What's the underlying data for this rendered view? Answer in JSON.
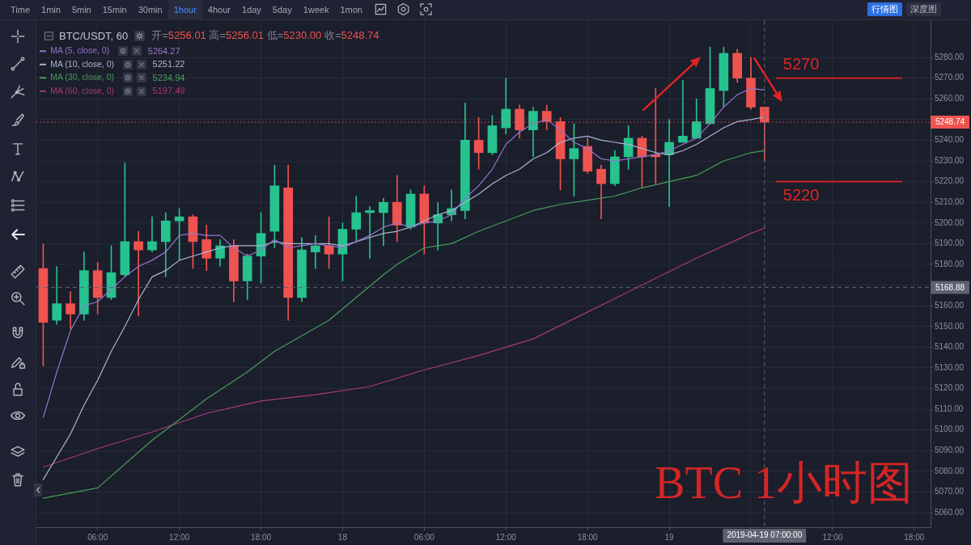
{
  "chart_data": {
    "type": "candlestick",
    "title": "BTC/USDT, 60",
    "subtitle": "开=5256.01 高=5256.01 低=5230.00 收=5248.74",
    "annotations": [
      "Time",
      "1min",
      "5min",
      "15min",
      "30min",
      "1hour",
      "4hour",
      "1day",
      "5day",
      "1week",
      "1mon",
      "行情图",
      "深度图",
      "5264.27",
      "5251.22",
      "5234.94",
      "5197.49",
      "BTC 1小时图"
    ],
    "x": [
      "2019-04-17T02:00",
      "2019-04-17T03:00",
      "2019-04-17T04:00",
      "2019-04-17T05:00",
      "2019-04-17T06:00",
      "2019-04-17T07:00",
      "2019-04-17T08:00",
      "2019-04-17T09:00",
      "2019-04-17T10:00",
      "2019-04-17T11:00",
      "2019-04-17T12:00",
      "2019-04-17T13:00",
      "2019-04-17T14:00",
      "2019-04-17T15:00",
      "2019-04-17T16:00",
      "2019-04-17T17:00",
      "2019-04-17T18:00",
      "2019-04-17T19:00",
      "2019-04-17T20:00",
      "2019-04-17T21:00",
      "2019-04-17T22:00",
      "2019-04-17T23:00",
      "2019-04-18T00:00",
      "2019-04-18T01:00",
      "2019-04-18T02:00",
      "2019-04-18T03:00",
      "2019-04-18T04:00",
      "2019-04-18T05:00",
      "2019-04-18T06:00",
      "2019-04-18T07:00",
      "2019-04-18T08:00",
      "2019-04-18T09:00",
      "2019-04-18T10:00",
      "2019-04-18T11:00",
      "2019-04-18T12:00",
      "2019-04-18T13:00",
      "2019-04-18T14:00",
      "2019-04-18T15:00",
      "2019-04-18T16:00",
      "2019-04-18T17:00",
      "2019-04-18T18:00",
      "2019-04-18T19:00",
      "2019-04-18T20:00",
      "2019-04-18T21:00",
      "2019-04-18T22:00",
      "2019-04-18T23:00",
      "2019-04-19T00:00",
      "2019-04-19T01:00",
      "2019-04-19T02:00",
      "2019-04-19T03:00",
      "2019-04-19T04:00",
      "2019-04-19T05:00",
      "2019-04-19T06:00",
      "2019-04-19T07:00"
    ],
    "ohlc": [
      [
        5178,
        5190,
        5131,
        5152
      ],
      [
        5153,
        5179,
        5151,
        5161
      ],
      [
        5161,
        5167,
        5149,
        5156
      ],
      [
        5156,
        5186,
        5153,
        5177
      ],
      [
        5177,
        5181,
        5156,
        5164
      ],
      [
        5164,
        5189,
        5163,
        5176
      ],
      [
        5175,
        5229,
        5174,
        5191
      ],
      [
        5191,
        5196,
        5155,
        5187
      ],
      [
        5187,
        5203,
        5186,
        5191
      ],
      [
        5191,
        5205,
        5174,
        5201
      ],
      [
        5201,
        5207,
        5182,
        5203
      ],
      [
        5203,
        5204,
        5178,
        5191
      ],
      [
        5192,
        5199,
        5177,
        5183
      ],
      [
        5183,
        5192,
        5179,
        5189
      ],
      [
        5189,
        5192,
        5162,
        5172
      ],
      [
        5172,
        5185,
        5163,
        5184
      ],
      [
        5184,
        5205,
        5171,
        5195
      ],
      [
        5196,
        5228,
        5188,
        5218
      ],
      [
        5217,
        5228,
        5153,
        5164
      ],
      [
        5164,
        5193,
        5162,
        5187
      ],
      [
        5186,
        5194,
        5178,
        5189
      ],
      [
        5189,
        5203,
        5178,
        5185
      ],
      [
        5185,
        5200,
        5172,
        5197
      ],
      [
        5197,
        5213,
        5191,
        5205
      ],
      [
        5205,
        5208,
        5183,
        5206
      ],
      [
        5205,
        5212,
        5189,
        5210
      ],
      [
        5210,
        5223,
        5191,
        5199
      ],
      [
        5198,
        5216,
        5197,
        5214
      ],
      [
        5214,
        5218,
        5185,
        5200
      ],
      [
        5200,
        5210,
        5187,
        5204
      ],
      [
        5204,
        5216,
        5201,
        5207
      ],
      [
        5206,
        5258,
        5202,
        5240
      ],
      [
        5240,
        5251,
        5226,
        5234
      ],
      [
        5234,
        5252,
        5233,
        5247
      ],
      [
        5246,
        5270,
        5243,
        5255
      ],
      [
        5255,
        5257,
        5241,
        5245
      ],
      [
        5245,
        5256,
        5232,
        5254
      ],
      [
        5254,
        5257,
        5245,
        5249
      ],
      [
        5249,
        5251,
        5216,
        5231
      ],
      [
        5231,
        5248,
        5213,
        5236
      ],
      [
        5237,
        5241,
        5224,
        5225
      ],
      [
        5226,
        5228,
        5202,
        5219
      ],
      [
        5219,
        5235,
        5218,
        5232
      ],
      [
        5232,
        5247,
        5226,
        5241
      ],
      [
        5241,
        5242,
        5217,
        5232
      ],
      [
        5233,
        5265,
        5219,
        5232
      ],
      [
        5233,
        5250,
        5208,
        5239
      ],
      [
        5239,
        5269,
        5239,
        5242
      ],
      [
        5241,
        5260,
        5241,
        5249
      ],
      [
        5248,
        5285,
        5248,
        5265
      ],
      [
        5264,
        5285,
        5256,
        5282
      ],
      [
        5282,
        5284,
        5268,
        5270
      ],
      [
        5270,
        5280,
        5255,
        5256
      ],
      [
        5256.01,
        5256.01,
        5230.0,
        5248.74
      ]
    ],
    "colors": [
      "#ef5350",
      "#26c28f",
      "#ef5350",
      "#26c28f",
      "#ef5350",
      "#26c28f",
      "#26c28f",
      "#ef5350",
      "#26c28f",
      "#26c28f",
      "#26c28f",
      "#ef5350",
      "#ef5350",
      "#26c28f",
      "#ef5350",
      "#26c28f",
      "#26c28f",
      "#26c28f",
      "#ef5350",
      "#26c28f",
      "#26c28f",
      "#ef5350",
      "#26c28f",
      "#26c28f",
      "#26c28f",
      "#26c28f",
      "#ef5350",
      "#26c28f",
      "#ef5350",
      "#26c28f",
      "#26c28f",
      "#26c28f",
      "#ef5350",
      "#26c28f",
      "#26c28f",
      "#ef5350",
      "#26c28f",
      "#ef5350",
      "#ef5350",
      "#26c28f",
      "#ef5350",
      "#ef5350",
      "#26c28f",
      "#26c28f",
      "#ef5350",
      "#ef5350",
      "#26c28f",
      "#26c28f",
      "#26c28f",
      "#26c28f",
      "#26c28f",
      "#ef5350",
      "#ef5350",
      "#ef5350"
    ],
    "series": [
      {
        "name": "MA (5, close, 0)",
        "type": "line",
        "color": "#9575cd",
        "values": [
          5106,
          5128,
          5148,
          5160,
          5162,
          5168,
          5174,
          5179,
          5182,
          5186,
          5194,
          5195,
          5194,
          5194,
          5188,
          5184,
          5187,
          5192,
          5188,
          5189,
          5190,
          5189,
          5188,
          5191,
          5194,
          5198,
          5200,
          5198,
          5200,
          5201,
          5204,
          5212,
          5218,
          5226,
          5238,
          5244,
          5248,
          5250,
          5245,
          5239,
          5236,
          5231,
          5230,
          5231,
          5232,
          5233,
          5235,
          5238,
          5241,
          5248,
          5256,
          5262,
          5265,
          5264.27
        ]
      },
      {
        "name": "MA (10, close, 0)",
        "type": "line",
        "color": "#a8b6d6",
        "values": [
          5076,
          5087,
          5098,
          5112,
          5124,
          5138,
          5150,
          5163,
          5174,
          5177,
          5182,
          5184,
          5186,
          5188,
          5189,
          5189,
          5189,
          5191,
          5190,
          5190,
          5190,
          5190,
          5189,
          5191,
          5193,
          5195,
          5196,
          5198,
          5201,
          5204,
          5206,
          5210,
          5214,
          5219,
          5223,
          5226,
          5231,
          5234,
          5239,
          5241,
          5242,
          5240,
          5239,
          5238,
          5236,
          5234,
          5233,
          5235,
          5238,
          5242,
          5246,
          5249,
          5250,
          5251.22
        ]
      },
      {
        "name": "MA (30, close, 0)",
        "type": "line",
        "color": "#4a9d5b",
        "x": [
          "2019-04-17T02:00",
          "2019-04-17T06:00",
          "2019-04-17T10:00",
          "2019-04-17T14:00",
          "2019-04-17T17:00",
          "2019-04-17T19:00",
          "2019-04-17T23:00",
          "2019-04-18T03:00",
          "2019-04-18T04:00",
          "2019-04-18T06:00",
          "2019-04-18T08:00",
          "2019-04-18T10:00",
          "2019-04-18T12:00",
          "2019-04-18T14:00",
          "2019-04-18T16:00",
          "2019-04-18T18:00",
          "2019-04-18T20:00",
          "2019-04-18T22:00",
          "2019-04-19T00:00",
          "2019-04-19T02:00",
          "2019-04-19T04:00",
          "2019-04-19T06:00",
          "2019-04-19T07:00"
        ],
        "values": [
          5067,
          5072,
          5095,
          5115,
          5128,
          5138,
          5153,
          5175,
          5180,
          5188,
          5190,
          5196,
          5201,
          5206,
          5209,
          5211,
          5213,
          5217,
          5220,
          5223,
          5230,
          5234,
          5234.94
        ]
      },
      {
        "name": "MA (60, close, 0)",
        "type": "line",
        "color": "#a63a7c",
        "x": [
          "2019-04-17T02:00",
          "2019-04-17T06:00",
          "2019-04-17T10:00",
          "2019-04-17T14:00",
          "2019-04-17T18:00",
          "2019-04-17T22:00",
          "2019-04-18T02:00",
          "2019-04-18T06:00",
          "2019-04-18T10:00",
          "2019-04-18T14:00",
          "2019-04-18T18:00",
          "2019-04-18T22:00",
          "2019-04-19T02:00",
          "2019-04-19T06:00",
          "2019-04-19T07:00"
        ],
        "values": [
          5082,
          5091,
          5099,
          5108,
          5114,
          5117,
          5121,
          5129,
          5136,
          5144,
          5157,
          5170,
          5183,
          5195,
          5197.49
        ]
      }
    ],
    "xlim": [
      "2019-04-17T01:30",
      "2019-04-19T19:12"
    ],
    "xticks": [
      {
        "value": "2019-04-17T06:00",
        "label": "06:00"
      },
      {
        "value": "2019-04-17T12:00",
        "label": "12:00"
      },
      {
        "value": "2019-04-17T18:00",
        "label": "18:00"
      },
      {
        "value": "2019-04-18T00:00",
        "label": "18"
      },
      {
        "value": "2019-04-18T06:00",
        "label": "06:00"
      },
      {
        "value": "2019-04-18T12:00",
        "label": "12:00"
      },
      {
        "value": "2019-04-18T18:00",
        "label": "18:00"
      },
      {
        "value": "2019-04-19T00:00",
        "label": "19"
      },
      {
        "value": "2019-04-19T06:00",
        "label": null
      },
      {
        "value": "2019-04-19T12:00",
        "label": "12:00"
      },
      {
        "value": "2019-04-19T18:00",
        "label": "18:00"
      }
    ],
    "ylim": [
      5053,
      5298
    ],
    "yticks": [
      {
        "value": 5060,
        "label": "5060.00"
      },
      {
        "value": 5070,
        "label": "5070.00"
      },
      {
        "value": 5080,
        "label": "5080.00"
      },
      {
        "value": 5090,
        "label": "5090.00"
      },
      {
        "value": 5100,
        "label": "5100.00"
      },
      {
        "value": 5110,
        "label": "5110.00"
      },
      {
        "value": 5120,
        "label": "5120.00"
      },
      {
        "value": 5130,
        "label": "5130.00"
      },
      {
        "value": 5140,
        "label": "5140.00"
      },
      {
        "value": 5150,
        "label": "5150.00"
      },
      {
        "value": 5160,
        "label": "5160.00"
      },
      {
        "value": 5170,
        "label": null
      },
      {
        "value": 5180,
        "label": "5180.00"
      },
      {
        "value": 5190,
        "label": "5190.00"
      },
      {
        "value": 5200,
        "label": "5200.00"
      },
      {
        "value": 5210,
        "label": "5210.00"
      },
      {
        "value": 5220,
        "label": "5220.00"
      },
      {
        "value": 5230,
        "label": "5230.00"
      },
      {
        "value": 5240,
        "label": "5240.00"
      },
      {
        "value": 5250,
        "label": null
      },
      {
        "value": 5260,
        "label": "5260.00"
      },
      {
        "value": 5270,
        "label": "5270.00"
      },
      {
        "value": 5280,
        "label": "5280.00"
      }
    ],
    "ref_lines": [
      {
        "axis": "y",
        "value": 5248.74,
        "label": "5248.74",
        "color": "#ef5350",
        "line_style": "dotted"
      },
      {
        "axis": "y",
        "value": 5168.88,
        "label": "5168.88",
        "color": "#5d6270",
        "line_style": "dashed"
      },
      {
        "axis": "x",
        "value": "2019-04-19T07:00",
        "label": "2019-04-19 07:00:00",
        "color": "#5d6270",
        "line_style": "dashed"
      },
      {
        "axis": "y",
        "value": 5270,
        "label": "5270",
        "color": "#e02424",
        "line_style": "solid"
      },
      {
        "axis": "y",
        "value": 5220,
        "label": "5220",
        "color": "#e02424",
        "line_style": "solid"
      }
    ],
    "grid": true,
    "legend": "top left",
    "marker": "none",
    "line_style": "solid"
  }
}
